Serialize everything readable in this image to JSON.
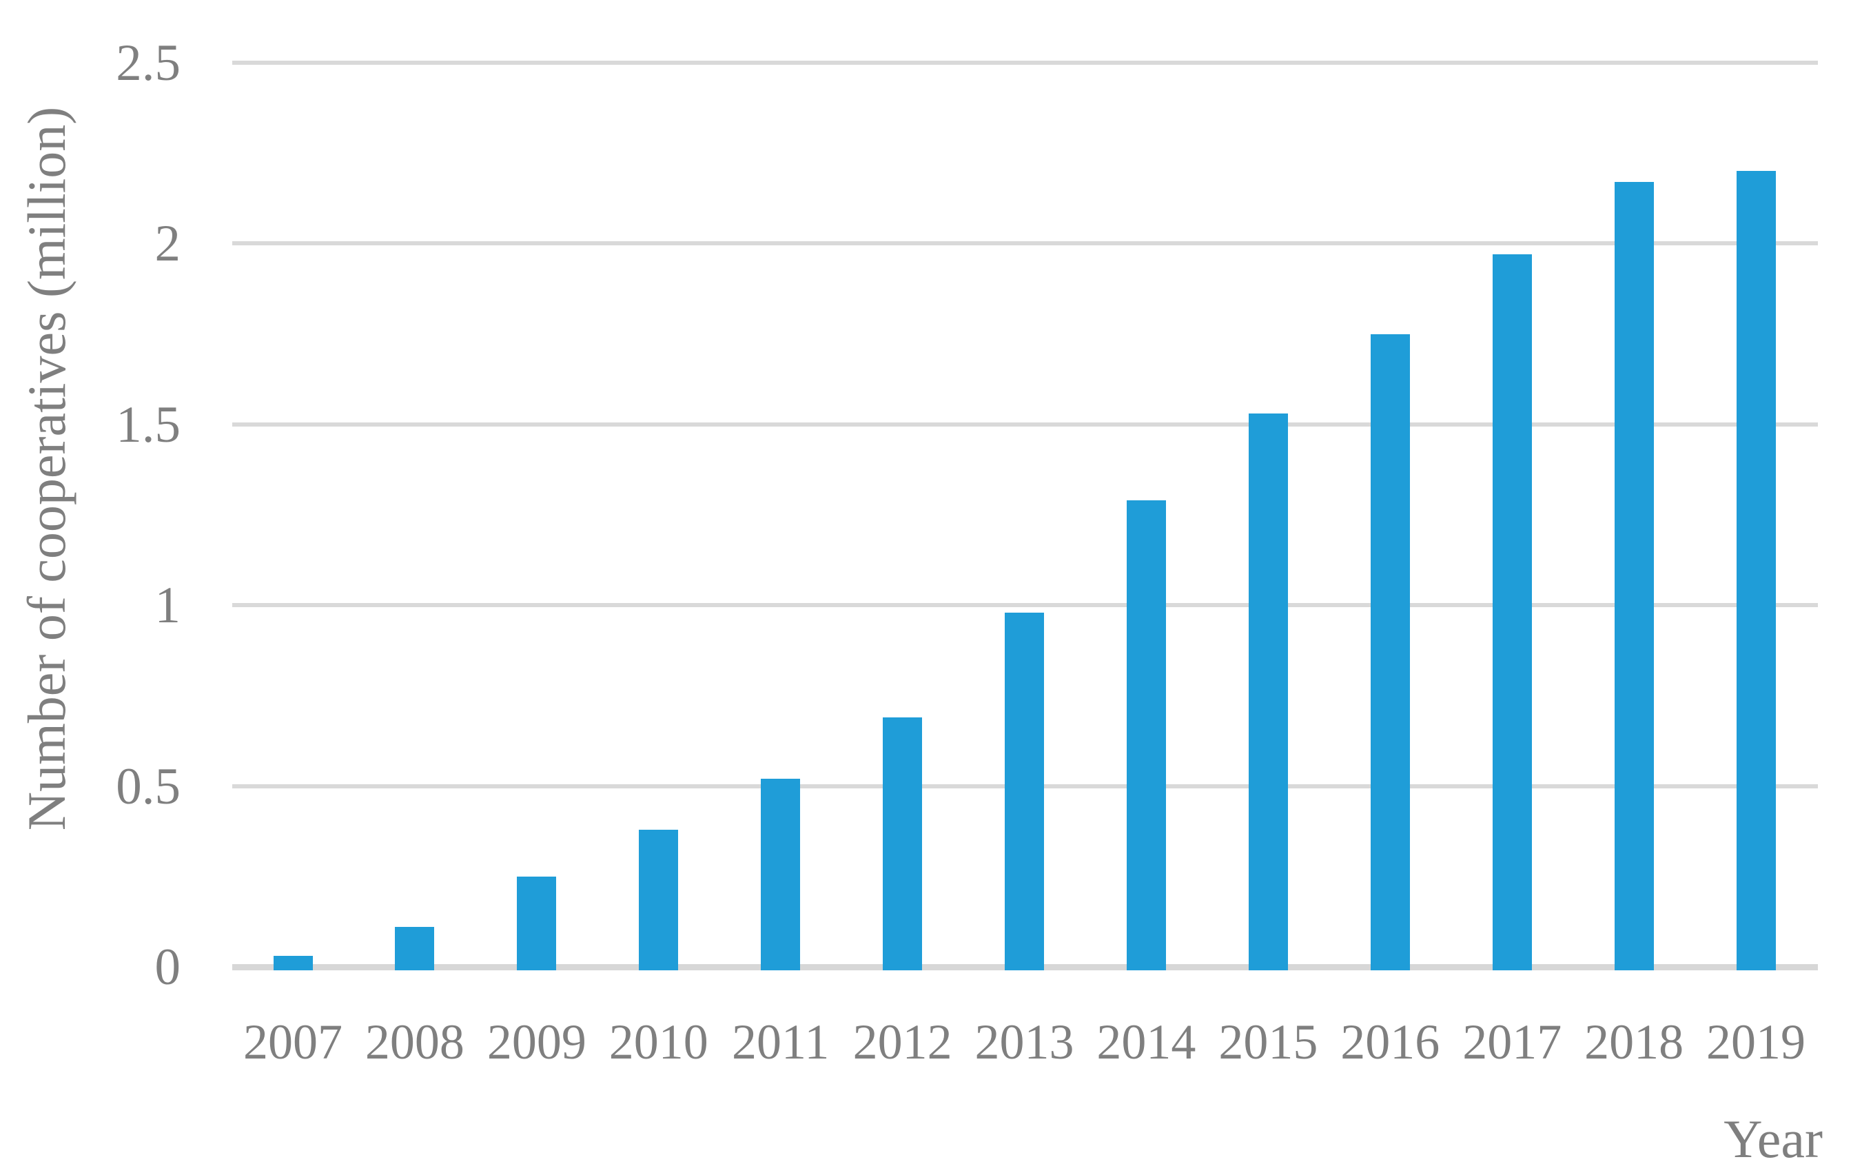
{
  "chart_data": {
    "type": "bar",
    "title": "",
    "categories": [
      "2007",
      "2008",
      "2009",
      "2010",
      "2011",
      "2012",
      "2013",
      "2014",
      "2015",
      "2016",
      "2017",
      "2018",
      "2019"
    ],
    "values": [
      0.03,
      0.11,
      0.25,
      0.38,
      0.52,
      0.69,
      0.98,
      1.29,
      1.53,
      1.75,
      1.97,
      2.17,
      2.2
    ],
    "xlabel": "Year",
    "ylabel": "Number of cooperatives (million)",
    "ylim": [
      0,
      2.5
    ],
    "ytick_step": 0.5,
    "ytick_labels": [
      "0",
      "0.5",
      "1",
      "1.5",
      "2",
      "2.5"
    ],
    "legend": "none",
    "grid": "horizontal",
    "bar_color": "#1f9dd8",
    "gridline_color": "#d9d9d9",
    "text_color": "#7f7f7f"
  }
}
